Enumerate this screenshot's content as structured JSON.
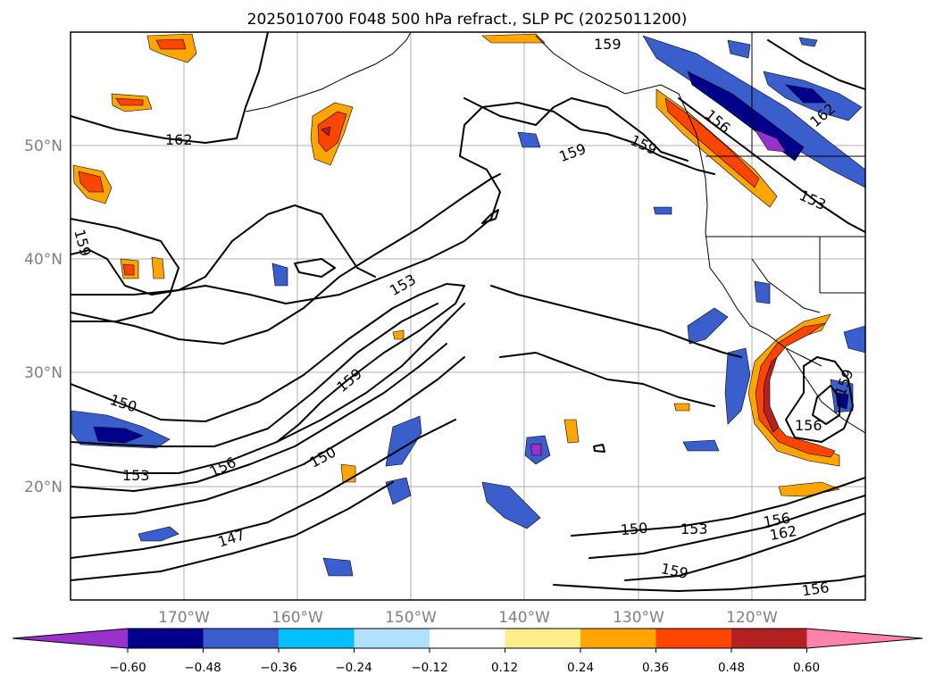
{
  "title": "2025010700 F048 500 hPa refract., SLP PC (2025011200)",
  "map": {
    "lon_labels": [
      "170°W",
      "160°W",
      "150°W",
      "140°W",
      "130°W",
      "120°W"
    ],
    "lat_labels": [
      "50°N",
      "40°N",
      "30°N",
      "20°N"
    ],
    "contour_labels": [
      "162",
      "159",
      "159",
      "159",
      "156",
      "153",
      "159",
      "162",
      "153",
      "159",
      "150",
      "156",
      "150",
      "153",
      "147",
      "156",
      "159",
      "150",
      "153",
      "156",
      "162",
      "159",
      "156"
    ]
  },
  "colorbar": {
    "ticks": [
      "−0.60",
      "−0.48",
      "−0.36",
      "−0.24",
      "−0.12",
      "0.12",
      "0.24",
      "0.36",
      "0.48",
      "0.60"
    ],
    "colors": [
      "#9932cc",
      "#00008b",
      "#3a5fcd",
      "#00bfff",
      "#b0e2ff",
      "#ffffff",
      "#ffec8b",
      "#ffa500",
      "#ff4500",
      "#b22222",
      "#ff82ab"
    ]
  },
  "chart_data": {
    "type": "map",
    "title": "2025010700 F048 500 hPa refract., SLP PC (2025011200)",
    "lon_range": [
      "180°W",
      "110°W"
    ],
    "lat_range": [
      "10°N",
      "60°N"
    ],
    "grid": true,
    "contour_values": [
      147,
      150,
      153,
      156,
      159,
      162
    ],
    "colorbar_levels": [
      -0.6,
      -0.48,
      -0.36,
      -0.24,
      -0.12,
      0.12,
      0.24,
      0.36,
      0.48,
      0.6
    ]
  }
}
